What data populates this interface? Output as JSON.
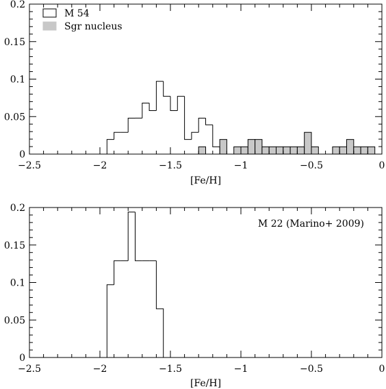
{
  "chart_data": [
    {
      "type": "histogram",
      "title": "",
      "xlabel": "[Fe/H]",
      "ylabel": "",
      "xlim": [
        -2.5,
        0
      ],
      "ylim": [
        0,
        0.2
      ],
      "xticks": [
        -2.5,
        -2,
        -1.5,
        -1,
        -0.5,
        0
      ],
      "xtick_labels": [
        "−2.5",
        "−2",
        "−1.5",
        "−1",
        "−0.5",
        "0"
      ],
      "yticks": [
        0,
        0.05,
        0.1,
        0.15,
        0.2
      ],
      "ytick_labels": [
        "0",
        "0.05",
        "0.1",
        "0.15",
        "0.2"
      ],
      "bin_width": 0.05,
      "series": [
        {
          "name": "M 54",
          "style": "outline",
          "color": "#000000",
          "bins": [
            {
              "x0": -1.95,
              "x1": -1.9,
              "value": 0.0195
            },
            {
              "x0": -1.9,
              "x1": -1.85,
              "value": 0.029
            },
            {
              "x0": -1.85,
              "x1": -1.8,
              "value": 0.029
            },
            {
              "x0": -1.8,
              "x1": -1.75,
              "value": 0.048
            },
            {
              "x0": -1.75,
              "x1": -1.7,
              "value": 0.048
            },
            {
              "x0": -1.7,
              "x1": -1.65,
              "value": 0.068
            },
            {
              "x0": -1.65,
              "x1": -1.6,
              "value": 0.058
            },
            {
              "x0": -1.6,
              "x1": -1.55,
              "value": 0.097
            },
            {
              "x0": -1.55,
              "x1": -1.5,
              "value": 0.077
            },
            {
              "x0": -1.5,
              "x1": -1.45,
              "value": 0.058
            },
            {
              "x0": -1.45,
              "x1": -1.4,
              "value": 0.077
            },
            {
              "x0": -1.4,
              "x1": -1.35,
              "value": 0.0195
            },
            {
              "x0": -1.35,
              "x1": -1.3,
              "value": 0.029
            },
            {
              "x0": -1.3,
              "x1": -1.25,
              "value": 0.048
            },
            {
              "x0": -1.25,
              "x1": -1.2,
              "value": 0.039
            },
            {
              "x0": -1.2,
              "x1": -1.15,
              "value": 0.0097
            }
          ]
        },
        {
          "name": "Sgr nucleus",
          "style": "filled",
          "color": "#c8c8c8",
          "bins": [
            {
              "x0": -1.3,
              "x1": -1.25,
              "value": 0.0097
            },
            {
              "x0": -1.15,
              "x1": -1.1,
              "value": 0.0195
            },
            {
              "x0": -1.05,
              "x1": -1.0,
              "value": 0.0097
            },
            {
              "x0": -1.0,
              "x1": -0.95,
              "value": 0.0097
            },
            {
              "x0": -0.95,
              "x1": -0.9,
              "value": 0.0195
            },
            {
              "x0": -0.9,
              "x1": -0.85,
              "value": 0.0195
            },
            {
              "x0": -0.85,
              "x1": -0.8,
              "value": 0.0097
            },
            {
              "x0": -0.8,
              "x1": -0.75,
              "value": 0.0097
            },
            {
              "x0": -0.75,
              "x1": -0.7,
              "value": 0.0097
            },
            {
              "x0": -0.7,
              "x1": -0.65,
              "value": 0.0097
            },
            {
              "x0": -0.65,
              "x1": -0.6,
              "value": 0.0097
            },
            {
              "x0": -0.6,
              "x1": -0.55,
              "value": 0.0097
            },
            {
              "x0": -0.55,
              "x1": -0.5,
              "value": 0.029
            },
            {
              "x0": -0.5,
              "x1": -0.45,
              "value": 0.0097
            },
            {
              "x0": -0.35,
              "x1": -0.3,
              "value": 0.0097
            },
            {
              "x0": -0.3,
              "x1": -0.25,
              "value": 0.0097
            },
            {
              "x0": -0.25,
              "x1": -0.2,
              "value": 0.0195
            },
            {
              "x0": -0.2,
              "x1": -0.15,
              "value": 0.0097
            },
            {
              "x0": -0.15,
              "x1": -0.1,
              "value": 0.0097
            },
            {
              "x0": -0.1,
              "x1": -0.05,
              "value": 0.0097
            }
          ]
        }
      ],
      "legend": {
        "placement": "top-left",
        "entries": [
          "M 54",
          "Sgr nucleus"
        ]
      }
    },
    {
      "type": "histogram",
      "title": "",
      "xlabel": "[Fe/H]",
      "ylabel": "",
      "xlim": [
        -2.5,
        0
      ],
      "ylim": [
        0,
        0.2
      ],
      "xticks": [
        -2.5,
        -2,
        -1.5,
        -1,
        -0.5,
        0
      ],
      "xtick_labels": [
        "−2.5",
        "−2",
        "−1.5",
        "−1",
        "−0.5",
        "0"
      ],
      "yticks": [
        0,
        0.05,
        0.1,
        0.15,
        0.2
      ],
      "ytick_labels": [
        "0",
        "0.05",
        "0.1",
        "0.15",
        "0.2"
      ],
      "bin_width": 0.05,
      "annotation": "M 22 (Marino+ 2009)",
      "annotation_placement": "top-right",
      "series": [
        {
          "name": "M 22 (Marino+ 2009)",
          "style": "outline",
          "color": "#000000",
          "bins": [
            {
              "x0": -1.95,
              "x1": -1.9,
              "value": 0.097
            },
            {
              "x0": -1.9,
              "x1": -1.85,
              "value": 0.129
            },
            {
              "x0": -1.85,
              "x1": -1.8,
              "value": 0.129
            },
            {
              "x0": -1.8,
              "x1": -1.75,
              "value": 0.194
            },
            {
              "x0": -1.75,
              "x1": -1.7,
              "value": 0.129
            },
            {
              "x0": -1.7,
              "x1": -1.65,
              "value": 0.129
            },
            {
              "x0": -1.65,
              "x1": -1.6,
              "value": 0.129
            },
            {
              "x0": -1.6,
              "x1": -1.55,
              "value": 0.065
            }
          ]
        }
      ]
    }
  ]
}
